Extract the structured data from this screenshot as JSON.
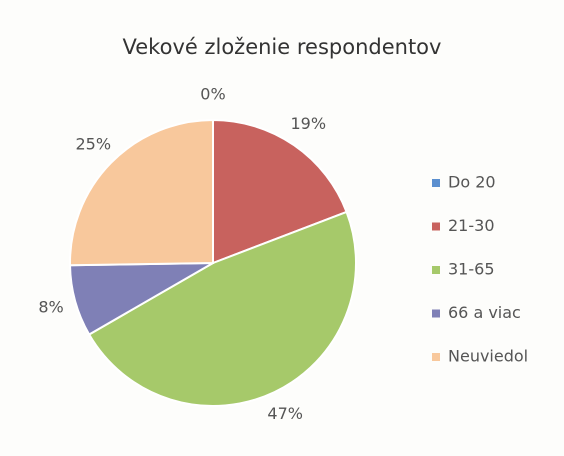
{
  "chart_data": {
    "type": "pie",
    "title": "Vekové zloženie respondentov",
    "categories": [
      "Do 20",
      "21-30",
      "31-65",
      "66 a viac",
      "Neuviedol"
    ],
    "values": [
      0,
      19,
      47,
      8,
      25
    ],
    "value_labels": [
      "0%",
      "19%",
      "47%",
      "8%",
      "25%"
    ],
    "colors": [
      "#5b8fcf",
      "#c8625e",
      "#a6c96a",
      "#7f80b6",
      "#f8c89c"
    ],
    "legend": "right"
  }
}
